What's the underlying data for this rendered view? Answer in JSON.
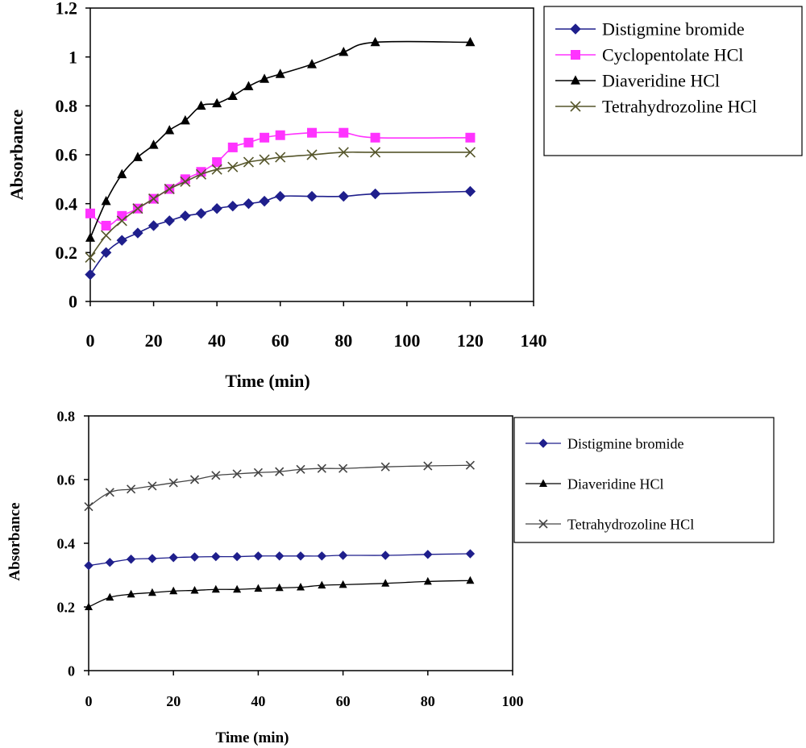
{
  "chart_data": [
    {
      "type": "line",
      "title": "",
      "xlabel": "Time (min)",
      "ylabel": "Absorbance",
      "xlim": [
        0,
        140
      ],
      "ylim": [
        0,
        1.2
      ],
      "xticks": [
        "0",
        "20",
        "40",
        "60",
        "80",
        "100",
        "120",
        "140"
      ],
      "yticks": [
        "0",
        "0.2",
        "0.4",
        "0.6",
        "0.8",
        "1",
        "1.2"
      ],
      "grid": false,
      "legend_position": "right",
      "series": [
        {
          "name": "Distigmine bromide",
          "color": "#1f1f8c",
          "marker": "diamond-icon",
          "x": [
            0,
            5,
            10,
            15,
            20,
            25,
            30,
            35,
            40,
            45,
            50,
            55,
            60,
            70,
            80,
            90,
            120
          ],
          "y": [
            0.11,
            0.2,
            0.25,
            0.28,
            0.31,
            0.33,
            0.35,
            0.36,
            0.38,
            0.39,
            0.4,
            0.41,
            0.43,
            0.43,
            0.43,
            0.44,
            0.45
          ]
        },
        {
          "name": "Cyclopentolate HCl",
          "color": "#ff33ff",
          "marker": "square-icon",
          "x": [
            0,
            5,
            10,
            15,
            20,
            25,
            30,
            35,
            40,
            45,
            50,
            55,
            60,
            70,
            80,
            90,
            120
          ],
          "y": [
            0.36,
            0.31,
            0.35,
            0.38,
            0.42,
            0.46,
            0.5,
            0.53,
            0.57,
            0.63,
            0.65,
            0.67,
            0.68,
            0.69,
            0.69,
            0.67,
            0.67
          ]
        },
        {
          "name": "Diaveridine HCl",
          "color": "#000000",
          "marker": "triangle-icon",
          "x": [
            0,
            5,
            10,
            15,
            20,
            25,
            30,
            35,
            40,
            45,
            50,
            55,
            60,
            70,
            80,
            90,
            120
          ],
          "y": [
            0.26,
            0.41,
            0.52,
            0.59,
            0.64,
            0.7,
            0.74,
            0.8,
            0.81,
            0.84,
            0.88,
            0.91,
            0.93,
            0.97,
            1.02,
            1.06,
            1.06
          ]
        },
        {
          "name": "Tetrahydrozoline HCl",
          "color": "#55552a",
          "marker": "x-icon",
          "x": [
            0,
            5,
            10,
            15,
            20,
            25,
            30,
            35,
            40,
            45,
            50,
            55,
            60,
            70,
            80,
            90,
            120
          ],
          "y": [
            0.18,
            0.27,
            0.33,
            0.38,
            0.42,
            0.46,
            0.49,
            0.52,
            0.54,
            0.55,
            0.57,
            0.58,
            0.59,
            0.6,
            0.61,
            0.61,
            0.61
          ]
        }
      ]
    },
    {
      "type": "line",
      "title": "",
      "xlabel": "Time (min)",
      "ylabel": "Absorbance",
      "xlim": [
        0,
        100
      ],
      "ylim": [
        0,
        0.8
      ],
      "xticks": [
        "0",
        "20",
        "40",
        "60",
        "80",
        "100"
      ],
      "yticks": [
        "0",
        "0.2",
        "0.4",
        "0.6",
        "0.8"
      ],
      "grid": false,
      "legend_position": "right",
      "series": [
        {
          "name": "Distigmine bromide",
          "color": "#1f1f8c",
          "marker": "diamond-icon",
          "x": [
            0,
            5,
            10,
            15,
            20,
            25,
            30,
            35,
            40,
            45,
            50,
            55,
            60,
            70,
            80,
            90
          ],
          "y": [
            0.33,
            0.34,
            0.35,
            0.352,
            0.355,
            0.357,
            0.358,
            0.358,
            0.36,
            0.36,
            0.36,
            0.36,
            0.362,
            0.362,
            0.365,
            0.367
          ]
        },
        {
          "name": "Diaveridine HCl",
          "color": "#000000",
          "marker": "triangle-icon",
          "x": [
            0,
            5,
            10,
            15,
            20,
            25,
            30,
            35,
            40,
            45,
            50,
            55,
            60,
            70,
            80,
            90
          ],
          "y": [
            0.2,
            0.23,
            0.24,
            0.245,
            0.25,
            0.252,
            0.255,
            0.255,
            0.258,
            0.26,
            0.262,
            0.268,
            0.27,
            0.274,
            0.28,
            0.283
          ]
        },
        {
          "name": "Tetrahydrozoline HCl",
          "color": "#444444",
          "marker": "x-icon",
          "x": [
            0,
            5,
            10,
            15,
            20,
            25,
            30,
            35,
            40,
            45,
            50,
            55,
            60,
            70,
            80,
            90
          ],
          "y": [
            0.515,
            0.56,
            0.57,
            0.58,
            0.59,
            0.6,
            0.613,
            0.618,
            0.622,
            0.625,
            0.632,
            0.635,
            0.635,
            0.64,
            0.643,
            0.645
          ]
        }
      ]
    }
  ]
}
